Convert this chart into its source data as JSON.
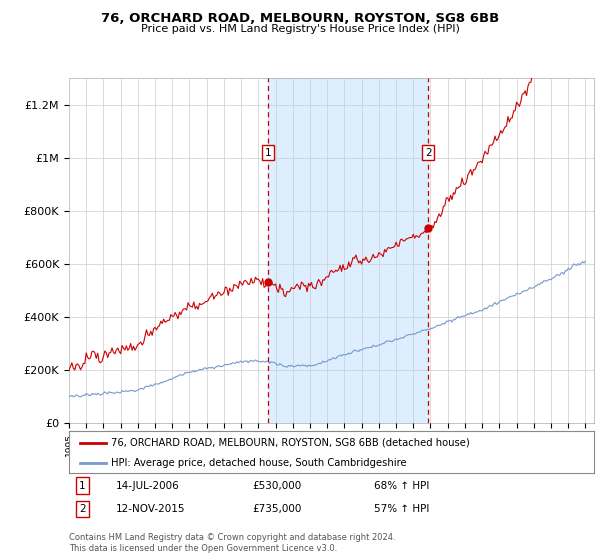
{
  "title1": "76, ORCHARD ROAD, MELBOURN, ROYSTON, SG8 6BB",
  "title2": "Price paid vs. HM Land Registry's House Price Index (HPI)",
  "red_label": "76, ORCHARD ROAD, MELBOURN, ROYSTON, SG8 6BB (detached house)",
  "blue_label": "HPI: Average price, detached house, South Cambridgeshire",
  "annotation1_date": "14-JUL-2006",
  "annotation1_price": "£530,000",
  "annotation1_hpi": "68% ↑ HPI",
  "annotation1_year": 2006.54,
  "annotation1_value": 530000,
  "annotation2_date": "12-NOV-2015",
  "annotation2_price": "£735,000",
  "annotation2_hpi": "57% ↑ HPI",
  "annotation2_year": 2015.87,
  "annotation2_value": 735000,
  "ylim": [
    0,
    1300000
  ],
  "yticks": [
    0,
    200000,
    400000,
    600000,
    800000,
    1000000,
    1200000
  ],
  "ytick_labels": [
    "£0",
    "£200K",
    "£400K",
    "£600K",
    "£800K",
    "£1M",
    "£1.2M"
  ],
  "red_color": "#cc0000",
  "blue_color": "#7799cc",
  "shading_color": "#ddeeff",
  "grid_color": "#cccccc",
  "footer": "Contains HM Land Registry data © Crown copyright and database right 2024.\nThis data is licensed under the Open Government Licence v3.0.",
  "background_color": "#ffffff"
}
